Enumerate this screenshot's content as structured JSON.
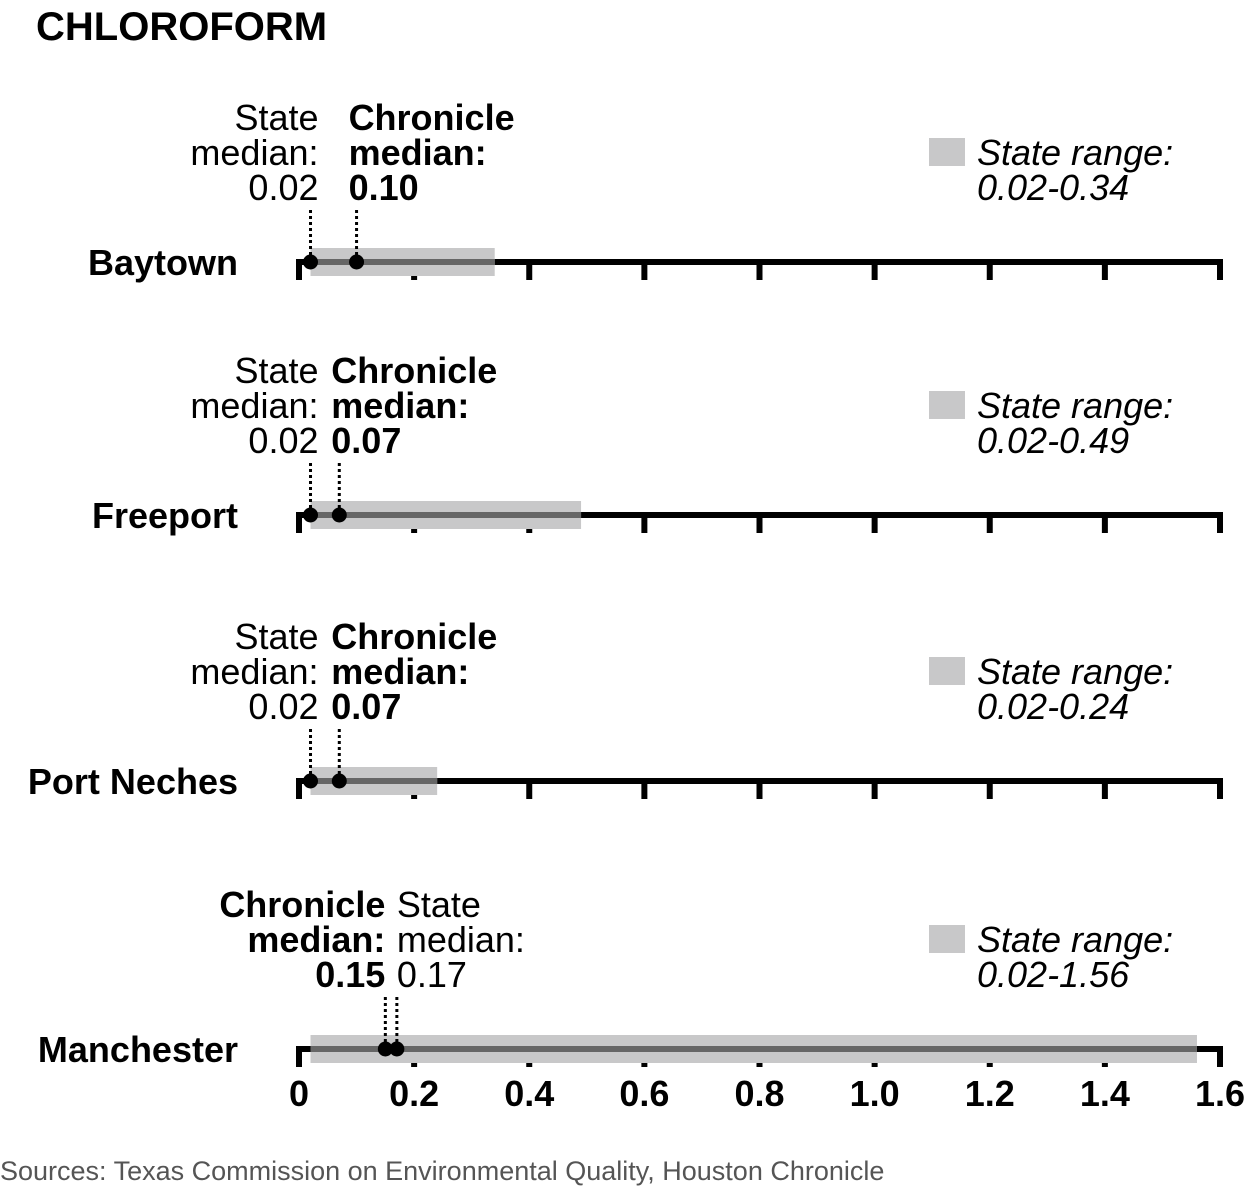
{
  "chart_data": {
    "type": "range-dot",
    "title": "CHLOROFORM",
    "xlim": [
      0,
      1.6
    ],
    "x_ticks": [
      "0",
      "0.2",
      "0.4",
      "0.6",
      "0.8",
      "1.0",
      "1.2",
      "1.4",
      "1.6"
    ],
    "labels": {
      "state_median_line1": "State",
      "state_median_line2": "median:",
      "chronicle_median_line1": "Chronicle",
      "chronicle_median_line2": "median:",
      "state_range_label": "State range:"
    },
    "rows": [
      {
        "city": "Baytown",
        "state_median": 0.02,
        "state_median_text": "0.02",
        "chronicle_median": 0.1,
        "chronicle_median_text": "0.10",
        "range_min": 0.02,
        "range_max": 0.34,
        "range_text": "0.02-0.34"
      },
      {
        "city": "Freeport",
        "state_median": 0.02,
        "state_median_text": "0.02",
        "chronicle_median": 0.07,
        "chronicle_median_text": "0.07",
        "range_min": 0.02,
        "range_max": 0.49,
        "range_text": "0.02-0.49"
      },
      {
        "city": "Port Neches",
        "state_median": 0.02,
        "state_median_text": "0.02",
        "chronicle_median": 0.07,
        "chronicle_median_text": "0.07",
        "range_min": 0.02,
        "range_max": 0.24,
        "range_text": "0.02-0.24"
      },
      {
        "city": "Manchester",
        "state_median": 0.17,
        "state_median_text": "0.17",
        "chronicle_median": 0.15,
        "chronicle_median_text": "0.15",
        "range_min": 0.02,
        "range_max": 1.56,
        "range_text": "0.02-1.56"
      }
    ],
    "colors": {
      "range_bar": "#c8c8c9",
      "inner_line": "#666666",
      "axis": "#000000",
      "dot": "#000000"
    }
  },
  "source": "Sources: Texas Commission on Environmental Quality, Houston Chronicle"
}
